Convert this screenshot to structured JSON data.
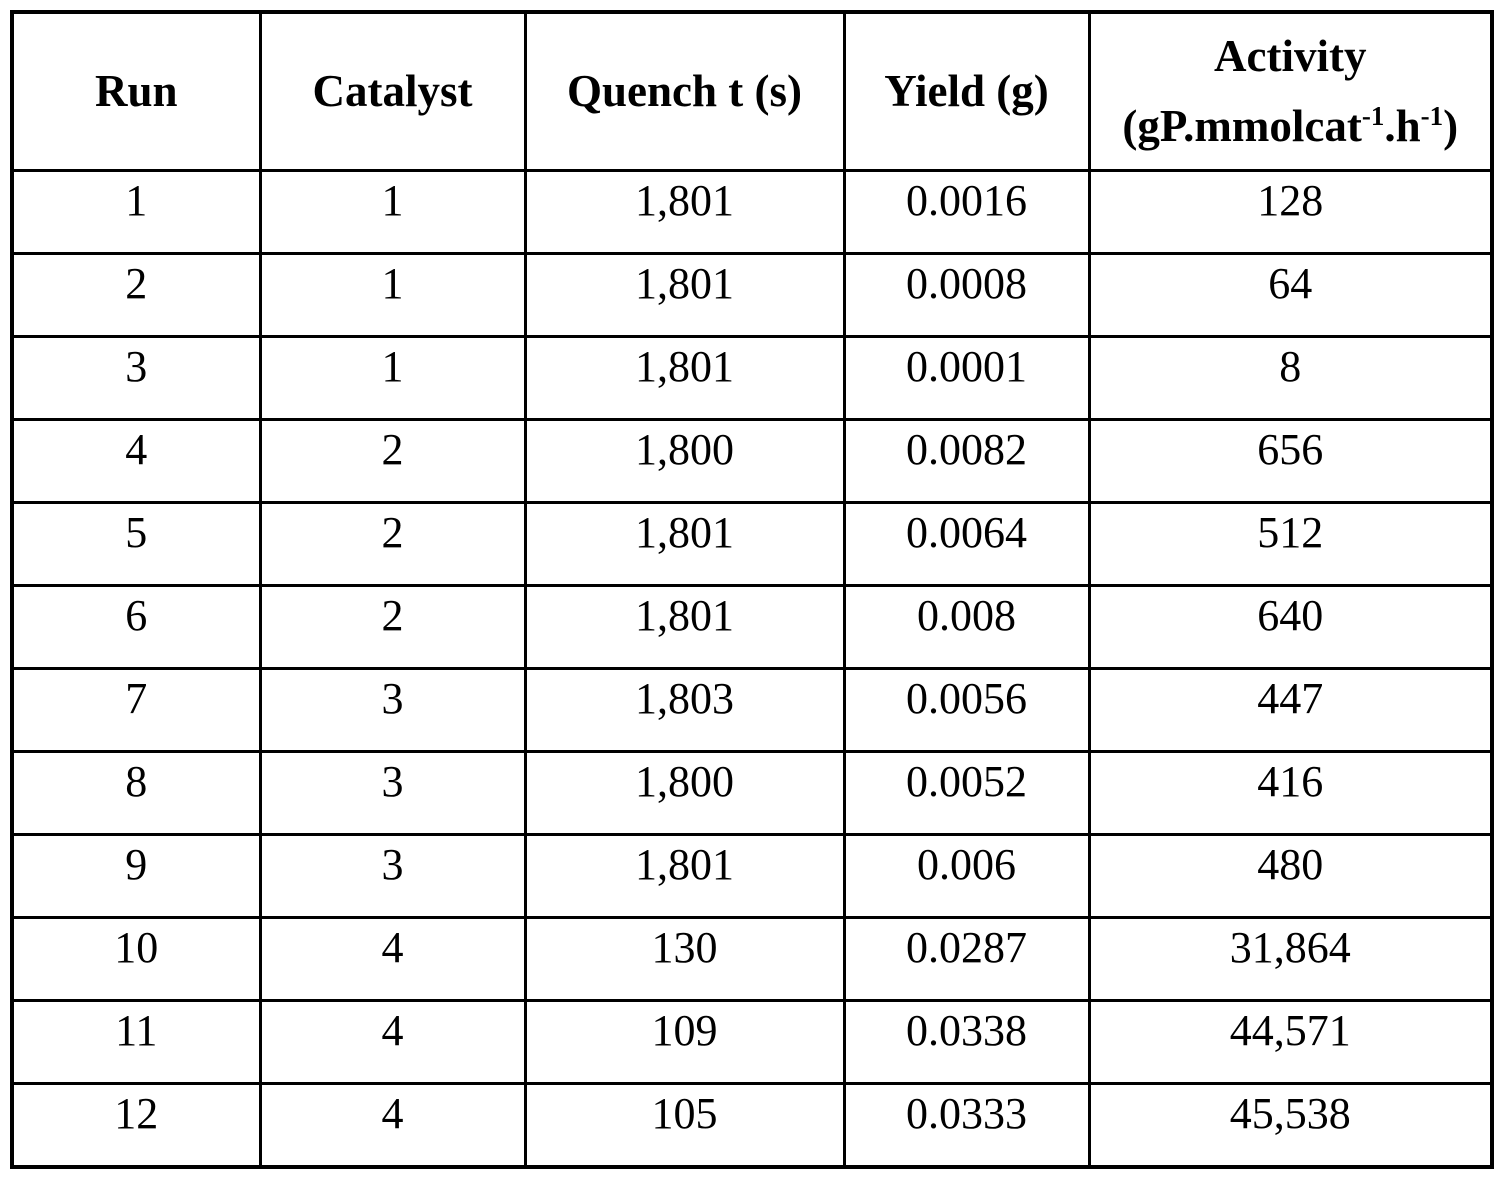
{
  "page": {
    "background_color": "#ffffff",
    "text_color": "#000000",
    "border_color": "#000000"
  },
  "table": {
    "headers": {
      "run": "Run",
      "catalyst": "Catalyst",
      "quench": "Quench t (s)",
      "yield": "Yield (g)",
      "activity": {
        "title": "Activity",
        "unit_open": "(gP.mmolcat",
        "unit_sup1": "-1",
        "unit_mid": ".h",
        "unit_sup2": "-1",
        "unit_close": ")"
      }
    },
    "rows": [
      {
        "run": "1",
        "catalyst": "1",
        "quench": "1,801",
        "yield": "0.0016",
        "activity": "128"
      },
      {
        "run": "2",
        "catalyst": "1",
        "quench": "1,801",
        "yield": "0.0008",
        "activity": "64"
      },
      {
        "run": "3",
        "catalyst": "1",
        "quench": "1,801",
        "yield": "0.0001",
        "activity": "8"
      },
      {
        "run": "4",
        "catalyst": "2",
        "quench": "1,800",
        "yield": "0.0082",
        "activity": "656"
      },
      {
        "run": "5",
        "catalyst": "2",
        "quench": "1,801",
        "yield": "0.0064",
        "activity": "512"
      },
      {
        "run": "6",
        "catalyst": "2",
        "quench": "1,801",
        "yield": "0.008",
        "activity": "640"
      },
      {
        "run": "7",
        "catalyst": "3",
        "quench": "1,803",
        "yield": "0.0056",
        "activity": "447"
      },
      {
        "run": "8",
        "catalyst": "3",
        "quench": "1,800",
        "yield": "0.0052",
        "activity": "416"
      },
      {
        "run": "9",
        "catalyst": "3",
        "quench": "1,801",
        "yield": "0.006",
        "activity": "480"
      },
      {
        "run": "10",
        "catalyst": "4",
        "quench": "130",
        "yield": "0.0287",
        "activity": "31,864"
      },
      {
        "run": "11",
        "catalyst": "4",
        "quench": "109",
        "yield": "0.0338",
        "activity": "44,571"
      },
      {
        "run": "12",
        "catalyst": "4",
        "quench": "105",
        "yield": "0.0333",
        "activity": "45,538"
      }
    ]
  }
}
